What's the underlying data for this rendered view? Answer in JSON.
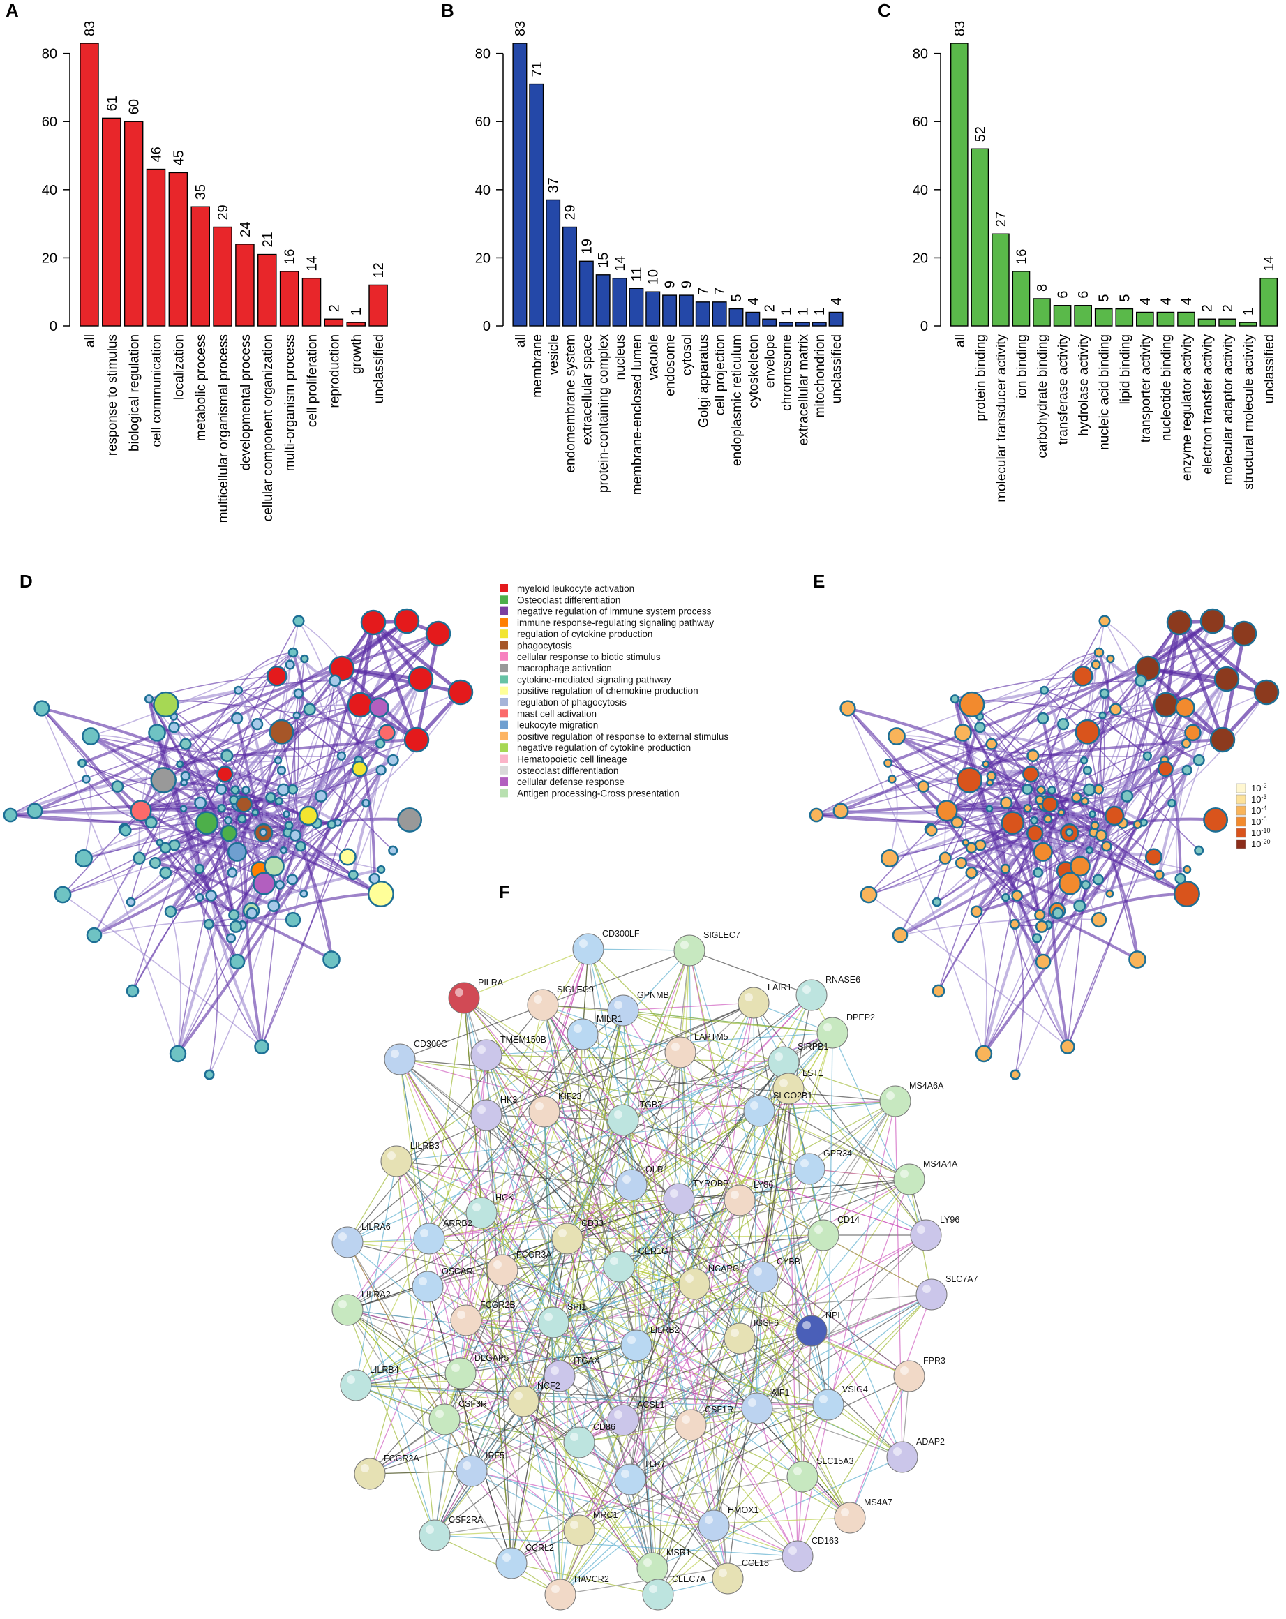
{
  "panels": {
    "A": "A",
    "B": "B",
    "C": "C",
    "D": "D",
    "E": "E",
    "F": "F"
  },
  "chart_data": [
    {
      "type": "bar",
      "panel": "A",
      "color": "#e8262a",
      "ylim": [
        0,
        83
      ],
      "yticks": [
        0,
        20,
        40,
        60,
        80
      ],
      "categories": [
        "all",
        "response to stimulus",
        "biological regulation",
        "cell communication",
        "localization",
        "metabolic process",
        "multicellular organismal process",
        "developmental process",
        "cellular component organization",
        "multi-organism process",
        "cell proliferation",
        "reproduction",
        "growth",
        "unclassified"
      ],
      "values": [
        83,
        61,
        60,
        46,
        45,
        35,
        29,
        24,
        21,
        16,
        14,
        2,
        1,
        12
      ]
    },
    {
      "type": "bar",
      "panel": "B",
      "color": "#2448a8",
      "ylim": [
        0,
        83
      ],
      "yticks": [
        0,
        20,
        40,
        60,
        80
      ],
      "categories": [
        "all",
        "membrane",
        "vesicle",
        "endomembrane system",
        "extracellular space",
        "protein-containing complex",
        "nucleus",
        "membrane-enclosed lumen",
        "vacuole",
        "endosome",
        "cytosol",
        "Golgi apparatus",
        "cell projection",
        "endoplasmic reticulum",
        "cytoskeleton",
        "envelope",
        "chromosome",
        "extracellular matrix",
        "mitochondrion",
        "unclassified"
      ],
      "values": [
        83,
        71,
        37,
        29,
        19,
        15,
        14,
        11,
        10,
        9,
        9,
        7,
        7,
        5,
        4,
        2,
        1,
        1,
        1,
        4
      ]
    },
    {
      "type": "bar",
      "panel": "C",
      "color": "#5ab94a",
      "ylim": [
        0,
        83
      ],
      "yticks": [
        0,
        20,
        40,
        60,
        80
      ],
      "categories": [
        "all",
        "protein binding",
        "molecular transducer activity",
        "ion binding",
        "carbohydrate binding",
        "transferase activity",
        "hydrolase activity",
        "nucleic acid binding",
        "lipid binding",
        "transporter activity",
        "nucleotide binding",
        "enzyme regulator activity",
        "electron transfer activity",
        "molecular adaptor activity",
        "structural molecule activity",
        "unclassified"
      ],
      "values": [
        83,
        52,
        27,
        16,
        8,
        6,
        6,
        5,
        5,
        4,
        4,
        4,
        2,
        2,
        1,
        14
      ]
    }
  ],
  "legend_d": [
    {
      "label": "myeloid leukocyte activation",
      "color": "#e41a1c"
    },
    {
      "label": "Osteoclast differentiation",
      "color": "#4daf4a"
    },
    {
      "label": "negative regulation of immune system process",
      "color": "#7b3fa0"
    },
    {
      "label": "immune response-regulating signaling pathway",
      "color": "#ff7f00"
    },
    {
      "label": "regulation of cytokine production",
      "color": "#f2e530"
    },
    {
      "label": "phagocytosis",
      "color": "#a65628"
    },
    {
      "label": "cellular response to biotic stimulus",
      "color": "#f781bf"
    },
    {
      "label": "macrophage activation",
      "color": "#999999"
    },
    {
      "label": "cytokine-mediated signaling pathway",
      "color": "#66c2a5"
    },
    {
      "label": "positive regulation of chemokine production",
      "color": "#ffff99"
    },
    {
      "label": "regulation of phagocytosis",
      "color": "#a6b4d8"
    },
    {
      "label": "mast cell activation",
      "color": "#fb6a6a"
    },
    {
      "label": "leukocyte migration",
      "color": "#6f9fd0"
    },
    {
      "label": "positive regulation of response to external stimulus",
      "color": "#fdb462"
    },
    {
      "label": "negative regulation of cytokine production",
      "color": "#a6d854"
    },
    {
      "label": "Hematopoietic cell lineage",
      "color": "#fbb4c8"
    },
    {
      "label": "osteoclast differentiation",
      "color": "#d9d9d9"
    },
    {
      "label": "cellular defense response",
      "color": "#b25fbf"
    },
    {
      "label": "Antigen processing-Cross presentation",
      "color": "#b8e0b0"
    }
  ],
  "legend_e": [
    {
      "base": "10",
      "exp": "-2",
      "color": "#fff7d1"
    },
    {
      "base": "10",
      "exp": "-3",
      "color": "#fde29a"
    },
    {
      "base": "10",
      "exp": "-4",
      "color": "#f9b45a"
    },
    {
      "base": "10",
      "exp": "-6",
      "color": "#f28a2e"
    },
    {
      "base": "10",
      "exp": "-10",
      "color": "#d9541c"
    },
    {
      "base": "10",
      "exp": "-20",
      "color": "#8c2d1a"
    }
  ],
  "ppi_nodes": [
    "CD300LF",
    "SIGLEC7",
    "PILRA",
    "SIGLEC9",
    "RNASE6",
    "LAIR1",
    "GPNMB",
    "MILR1",
    "DPEP2",
    "TMEM150B",
    "LAPTM5",
    "SIRPB1",
    "LST1",
    "CD300C",
    "SLCO2B1",
    "MS4A6A",
    "HK3",
    "KIF23",
    "ITGB2",
    "LILRB3",
    "OLR1",
    "GPR34",
    "MS4A4A",
    "TYROBP",
    "LY86",
    "HCK",
    "CD33",
    "LILRA6",
    "ARRB2",
    "CD14",
    "LY96",
    "FCGR3A",
    "FCER1G",
    "NCAPG",
    "CYBB",
    "OSCAR",
    "LILRA2",
    "SLC7A7",
    "FCGR2B",
    "SPI1",
    "IGSF6",
    "NPL",
    "LILRB2",
    "DLGAP5",
    "ITGAX",
    "FPR3",
    "LILRB4",
    "NCF2",
    "AIF1",
    "VSIG4",
    "CSF3R",
    "ACSL1",
    "CSF1R",
    "CD86",
    "FCGR2A",
    "IRF5",
    "TLR7",
    "SLC15A3",
    "ADAP2",
    "MS4A7",
    "CSF2RA",
    "MRC1",
    "HMOX1",
    "CCRL2",
    "MSR1",
    "CD163",
    "HAVCR2",
    "CLEC7A",
    "CCL18"
  ]
}
